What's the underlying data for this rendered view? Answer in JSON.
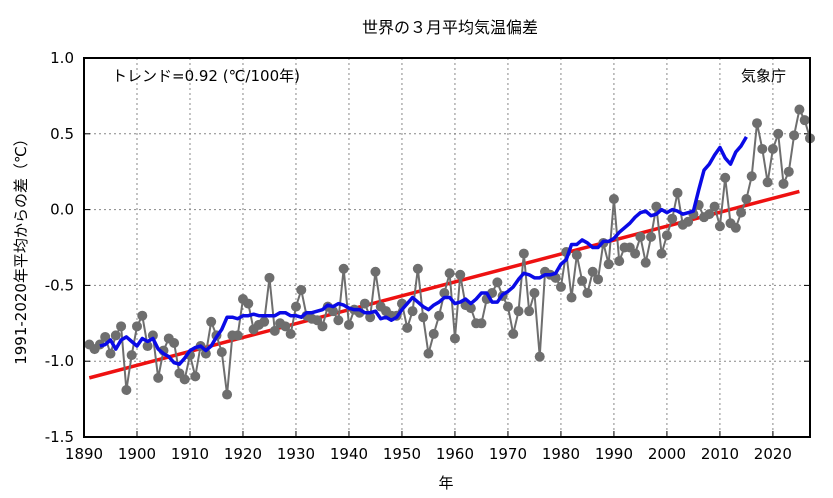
{
  "chart_data": {
    "type": "line",
    "title": "世界の３月平均気温偏差",
    "xlabel": "年",
    "ylabel": "1991-2020年平均からの差（℃）",
    "xlim": [
      1890,
      2027
    ],
    "ylim": [
      -1.5,
      1.0
    ],
    "xticks": [
      1890,
      1900,
      1910,
      1920,
      1930,
      1940,
      1950,
      1960,
      1970,
      1980,
      1990,
      2000,
      2010,
      2020
    ],
    "yticks": [
      -1.5,
      -1.0,
      -0.5,
      0.0,
      0.5,
      1.0
    ],
    "ytick_labels": [
      "-1.5",
      "-1.0",
      "-0.5",
      "0.0",
      "0.5",
      "1.0"
    ],
    "grid": true,
    "annotations": {
      "trend": "トレンド=0.92 (℃/100年)",
      "source": "気象庁"
    },
    "colors": {
      "annual": "#6e6e6e",
      "moving_avg": "#0a0ae6",
      "trend": "#ee1111"
    },
    "series": [
      {
        "name": "annual",
        "x_start": 1891,
        "values": [
          -0.89,
          -0.92,
          -0.89,
          -0.84,
          -0.95,
          -0.83,
          -0.77,
          -1.19,
          -0.96,
          -0.77,
          -0.7,
          -0.9,
          -0.83,
          -1.11,
          -0.93,
          -0.85,
          -0.88,
          -1.08,
          -1.12,
          -0.96,
          -1.1,
          -0.9,
          -0.95,
          -0.74,
          -0.83,
          -0.94,
          -1.22,
          -0.83,
          -0.83,
          -0.59,
          -0.62,
          -0.79,
          -0.76,
          -0.74,
          -0.45,
          -0.8,
          -0.75,
          -0.77,
          -0.82,
          -0.64,
          -0.53,
          -0.7,
          -0.72,
          -0.73,
          -0.77,
          -0.64,
          -0.67,
          -0.73,
          -0.39,
          -0.76,
          -0.66,
          -0.68,
          -0.62,
          -0.71,
          -0.41,
          -0.64,
          -0.67,
          -0.7,
          -0.7,
          -0.62,
          -0.78,
          -0.67,
          -0.39,
          -0.71,
          -0.95,
          -0.82,
          -0.7,
          -0.55,
          -0.42,
          -0.85,
          -0.43,
          -0.63,
          -0.65,
          -0.75,
          -0.75,
          -0.59,
          -0.55,
          -0.48,
          -0.57,
          -0.64,
          -0.82,
          -0.67,
          -0.29,
          -0.67,
          -0.55,
          -0.97,
          -0.41,
          -0.43,
          -0.45,
          -0.51,
          -0.28,
          -0.58,
          -0.3,
          -0.47,
          -0.55,
          -0.41,
          -0.46,
          -0.22,
          -0.36,
          0.07,
          -0.34,
          -0.25,
          -0.25,
          -0.29,
          -0.18,
          -0.35,
          -0.18,
          0.02,
          -0.29,
          -0.17,
          -0.06,
          0.11,
          -0.1,
          -0.08,
          -0.03,
          0.03,
          -0.05,
          -0.03,
          0.02,
          -0.11,
          0.21,
          -0.09,
          -0.12,
          -0.02,
          0.07,
          0.22,
          0.57,
          0.4,
          0.18,
          0.4,
          0.5,
          0.17,
          0.25,
          0.49,
          0.66,
          0.59,
          0.47
        ]
      },
      {
        "name": "5-year moving average",
        "x_start": 1893,
        "values": [
          -0.9,
          -0.89,
          -0.86,
          -0.92,
          -0.86,
          -0.84,
          -0.87,
          -0.9,
          -0.85,
          -0.87,
          -0.85,
          -0.92,
          -0.95,
          -0.97,
          -1.01,
          -1.02,
          -0.98,
          -0.93,
          -0.91,
          -0.9,
          -0.93,
          -0.9,
          -0.84,
          -0.79,
          -0.71,
          -0.71,
          -0.72,
          -0.7,
          -0.7,
          -0.69,
          -0.7,
          -0.7,
          -0.7,
          -0.7,
          -0.68,
          -0.68,
          -0.7,
          -0.7,
          -0.71,
          -0.68,
          -0.68,
          -0.67,
          -0.66,
          -0.63,
          -0.64,
          -0.62,
          -0.63,
          -0.65,
          -0.66,
          -0.66,
          -0.68,
          -0.68,
          -0.67,
          -0.72,
          -0.71,
          -0.73,
          -0.71,
          -0.66,
          -0.62,
          -0.58,
          -0.61,
          -0.64,
          -0.66,
          -0.63,
          -0.61,
          -0.58,
          -0.58,
          -0.62,
          -0.61,
          -0.59,
          -0.62,
          -0.59,
          -0.55,
          -0.55,
          -0.61,
          -0.61,
          -0.56,
          -0.54,
          -0.51,
          -0.46,
          -0.42,
          -0.43,
          -0.45,
          -0.45,
          -0.43,
          -0.43,
          -0.42,
          -0.36,
          -0.33,
          -0.23,
          -0.23,
          -0.2,
          -0.22,
          -0.25,
          -0.25,
          -0.21,
          -0.21,
          -0.19,
          -0.15,
          -0.12,
          -0.09,
          -0.05,
          -0.02,
          -0.01,
          -0.04,
          -0.03,
          0.0,
          -0.02,
          0.0,
          -0.01,
          -0.03,
          -0.02,
          -0.01,
          0.13,
          0.26,
          0.3,
          0.36,
          0.41,
          0.34,
          0.3,
          0.38,
          0.42,
          0.48
        ]
      },
      {
        "name": "trend",
        "x": [
          1891,
          2025
        ],
        "values": [
          -1.11,
          0.12
        ]
      }
    ]
  }
}
